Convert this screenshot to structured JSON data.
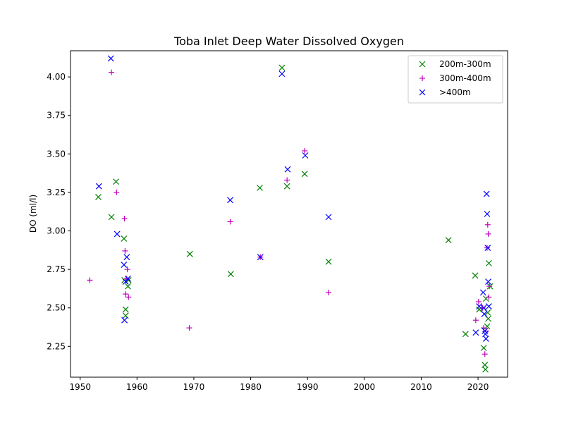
{
  "chart_data": {
    "type": "scatter",
    "title": "Toba Inlet Deep Water Dissolved Oxygen",
    "xlabel": "",
    "ylabel": "DO (ml/l)",
    "xlim": [
      1948.3,
      2025.2
    ],
    "ylim": [
      2.05,
      4.17
    ],
    "xticks": [
      1950,
      1960,
      1970,
      1980,
      1990,
      2000,
      2010,
      2020
    ],
    "xtick_labels": [
      "1950",
      "1960",
      "1970",
      "1980",
      "1990",
      "2000",
      "2010",
      "2020"
    ],
    "yticks": [
      2.25,
      2.5,
      2.75,
      3.0,
      3.25,
      3.5,
      3.75,
      4.0
    ],
    "ytick_labels": [
      "2.25",
      "2.50",
      "2.75",
      "3.00",
      "3.25",
      "3.50",
      "3.75",
      "4.00"
    ],
    "grid": false,
    "legend_position": "top-right",
    "series": [
      {
        "name": "200m-300m",
        "color": "#008000",
        "marker": "x",
        "points": [
          [
            1953.2,
            3.22
          ],
          [
            1955.5,
            3.09
          ],
          [
            1956.3,
            3.32
          ],
          [
            1957.7,
            2.95
          ],
          [
            1957.8,
            2.68
          ],
          [
            1958.0,
            2.49
          ],
          [
            1958.0,
            2.45
          ],
          [
            1958.4,
            2.64
          ],
          [
            1958.5,
            2.68
          ],
          [
            1969.3,
            2.85
          ],
          [
            1976.5,
            2.72
          ],
          [
            1981.6,
            3.28
          ],
          [
            1985.5,
            4.06
          ],
          [
            1986.4,
            3.29
          ],
          [
            1989.5,
            3.37
          ],
          [
            1993.7,
            2.8
          ],
          [
            2014.8,
            2.94
          ],
          [
            2017.8,
            2.33
          ],
          [
            2019.5,
            2.71
          ],
          [
            2020.2,
            2.49
          ],
          [
            2021.0,
            2.24
          ],
          [
            2021.2,
            2.13
          ],
          [
            2021.3,
            2.1
          ],
          [
            2021.4,
            2.56
          ],
          [
            2021.6,
            2.38
          ],
          [
            2021.7,
            2.47
          ],
          [
            2021.8,
            2.43
          ],
          [
            2021.9,
            2.79
          ],
          [
            2022.1,
            2.64
          ]
        ]
      },
      {
        "name": "300m-400m",
        "color": "#bf00bf",
        "marker": "+",
        "points": [
          [
            1951.7,
            2.68
          ],
          [
            1955.5,
            4.03
          ],
          [
            1956.4,
            3.25
          ],
          [
            1957.8,
            3.08
          ],
          [
            1957.9,
            2.87
          ],
          [
            1958.0,
            2.59
          ],
          [
            1958.2,
            2.69
          ],
          [
            1958.3,
            2.75
          ],
          [
            1958.5,
            2.57
          ],
          [
            1969.2,
            2.37
          ],
          [
            1976.4,
            3.06
          ],
          [
            1981.7,
            2.83
          ],
          [
            1986.4,
            3.33
          ],
          [
            1989.5,
            3.52
          ],
          [
            1993.7,
            2.6
          ],
          [
            2019.6,
            2.42
          ],
          [
            2020.1,
            2.54
          ],
          [
            2020.8,
            2.5
          ],
          [
            2021.0,
            2.37
          ],
          [
            2021.2,
            2.2
          ],
          [
            2021.4,
            2.35
          ],
          [
            2021.6,
            2.89
          ],
          [
            2021.7,
            3.04
          ],
          [
            2021.8,
            2.98
          ],
          [
            2021.9,
            2.57
          ],
          [
            2022.0,
            2.64
          ]
        ]
      },
      {
        "name": ">400m",
        "color": "#0000ff",
        "marker": "x",
        "points": [
          [
            1953.3,
            3.29
          ],
          [
            1955.4,
            4.12
          ],
          [
            1956.5,
            2.98
          ],
          [
            1957.7,
            2.78
          ],
          [
            1957.8,
            2.42
          ],
          [
            1958.0,
            2.67
          ],
          [
            1958.2,
            2.83
          ],
          [
            1958.4,
            2.69
          ],
          [
            1976.4,
            3.2
          ],
          [
            1981.7,
            2.83
          ],
          [
            1985.5,
            4.02
          ],
          [
            1986.5,
            3.4
          ],
          [
            1989.6,
            3.49
          ],
          [
            1993.7,
            3.09
          ],
          [
            2019.6,
            2.34
          ],
          [
            2020.2,
            2.51
          ],
          [
            2020.9,
            2.6
          ],
          [
            2021.0,
            2.5
          ],
          [
            2021.1,
            2.46
          ],
          [
            2021.2,
            2.35
          ],
          [
            2021.3,
            2.33
          ],
          [
            2021.4,
            2.3
          ],
          [
            2021.5,
            3.24
          ],
          [
            2021.6,
            3.11
          ],
          [
            2021.7,
            2.89
          ],
          [
            2021.8,
            2.67
          ],
          [
            2021.9,
            2.51
          ]
        ]
      }
    ]
  }
}
